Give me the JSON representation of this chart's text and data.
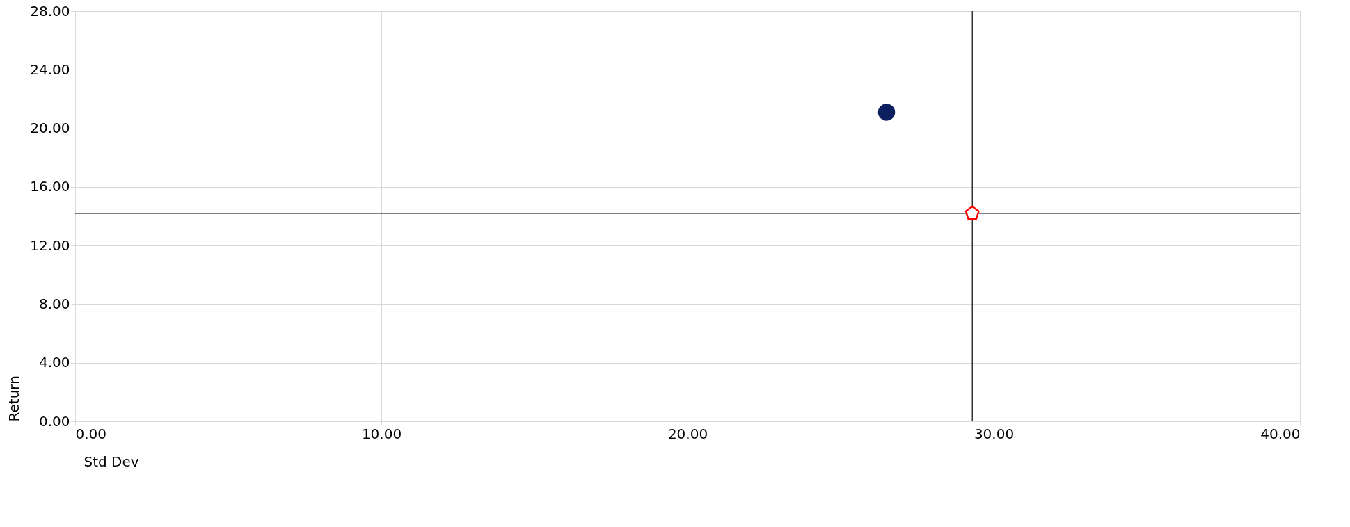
{
  "chart_data": {
    "type": "scatter",
    "xlabel": "Std Dev",
    "ylabel": "Return",
    "xlim": [
      0,
      40
    ],
    "xticks": [
      {
        "value": 0,
        "label": "0.00"
      },
      {
        "value": 10,
        "label": "10.00"
      },
      {
        "value": 20,
        "label": "20.00"
      },
      {
        "value": 30,
        "label": "30.00"
      },
      {
        "value": 40,
        "label": "40.00"
      }
    ],
    "ylim": [
      0,
      28
    ],
    "yticks": [
      {
        "value": 0,
        "label": "0.00"
      },
      {
        "value": 4,
        "label": "4.00"
      },
      {
        "value": 8,
        "label": "8.00"
      },
      {
        "value": 12,
        "label": "12.00"
      },
      {
        "value": 16,
        "label": "16.00"
      },
      {
        "value": 20,
        "label": "20.00"
      },
      {
        "value": 24,
        "label": "24.00"
      },
      {
        "value": 28,
        "label": "28.00"
      }
    ],
    "grid": true,
    "series": [
      {
        "color": "#0c1f5e",
        "x": [
          26.5
        ],
        "values": [
          21.1
        ],
        "marker": "circle"
      },
      {
        "color": "#ff0000",
        "x": [
          29.3
        ],
        "values": [
          14.2
        ]
      }
    ],
    "ref_lines": [
      {
        "axis": "x",
        "value": 29.3,
        "color": "#000000"
      },
      {
        "axis": "y",
        "value": 14.2,
        "color": "#000000"
      }
    ]
  }
}
